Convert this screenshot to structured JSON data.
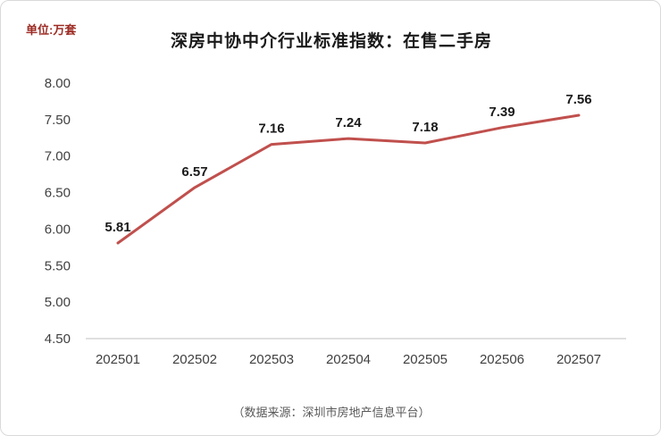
{
  "chart": {
    "unit_label": "单位:万套",
    "unit_label_color": "#9c2b23",
    "source_note": "（数据来源：深圳市房地产信息平台）"
  },
  "chart_data": {
    "type": "line",
    "title": "深房中协中介行业标准指数：在售二手房",
    "categories": [
      "202501",
      "202502",
      "202503",
      "202504",
      "202505",
      "202506",
      "202507"
    ],
    "values": [
      5.81,
      6.57,
      7.16,
      7.24,
      7.18,
      7.39,
      7.56
    ],
    "data_labels": [
      "5.81",
      "6.57",
      "7.16",
      "7.24",
      "7.18",
      "7.39",
      "7.56"
    ],
    "xlabel": "",
    "ylabel": "",
    "ylim": [
      4.5,
      8.0
    ],
    "ytick_step": 0.5,
    "ytick_labels": [
      "4.50",
      "5.00",
      "5.50",
      "6.00",
      "6.50",
      "7.00",
      "7.50",
      "8.00"
    ],
    "grid": false,
    "legend": "none",
    "line_color": "#c0504d",
    "line_width": 3,
    "label_color": "#1a1a1a",
    "axis_color": "#bfbfbf"
  }
}
